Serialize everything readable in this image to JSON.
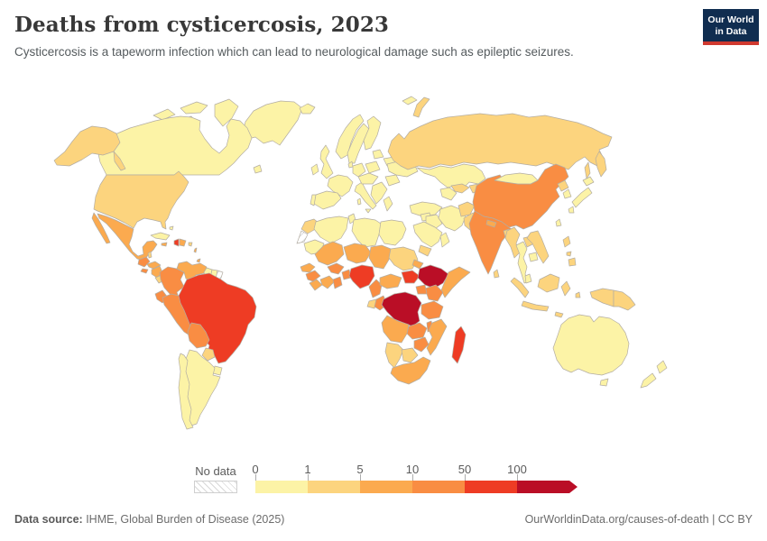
{
  "header": {
    "title": "Deaths from cysticercosis, 2023",
    "subtitle": "Cysticercosis is a tapeworm infection which can lead to neurological damage such as epileptic seizures."
  },
  "logo": {
    "line1": "Our World",
    "line2": "in Data",
    "bg": "#102d50",
    "accent": "#d0392f"
  },
  "legend": {
    "no_data_label": "No data"
  },
  "footer": {
    "source_label": "Data source:",
    "source_text": " IHME, Global Burden of Disease (2025)",
    "right_text": "OurWorldinData.org/causes-of-death | CC BY"
  },
  "map": {
    "border_color": "#b3ada3",
    "ocean_color": "#ffffff"
  },
  "chart_data": {
    "type": "heatmap",
    "subtype": "world-choropleth",
    "title": "Deaths from cysticercosis, 2023",
    "legend_position": "bottom",
    "bins": [
      {
        "label": "0",
        "range": "0-1",
        "color": "#fcf3a6"
      },
      {
        "label": "1",
        "range": "1-5",
        "color": "#fcd47e"
      },
      {
        "label": "5",
        "range": "5-10",
        "color": "#fbaa4f"
      },
      {
        "label": "10",
        "range": "10-50",
        "color": "#f98d43"
      },
      {
        "label": "50",
        "range": "50-100",
        "color": "#ee3c24"
      },
      {
        "label": "100",
        "range": "100+",
        "color": "#ba0e26"
      }
    ],
    "no_data_countries": [
      "western_sahara",
      "french_guiana"
    ],
    "countries": {
      "greenland": 0,
      "canada": 0,
      "usa": 1,
      "mexico": 2,
      "guatemala": 3,
      "belize": 1,
      "honduras": 2,
      "el_salvador": 3,
      "nicaragua": 2,
      "costa_rica": 1,
      "panama": 2,
      "cuba": 0,
      "jamaica": 2,
      "haiti": 4,
      "dominican_republic": 2,
      "puerto_rico": 1,
      "bahamas": 0,
      "lesser_antilles": 2,
      "trinidad_and_tobago": 2,
      "colombia": 3,
      "venezuela": 2,
      "guyana": 0,
      "suriname": 0,
      "french_guiana": -1,
      "ecuador": 3,
      "peru": 3,
      "brazil": 4,
      "bolivia": 3,
      "paraguay": 1,
      "uruguay": 0,
      "argentina": 0,
      "chile": 0,
      "iceland": 0,
      "ireland": 0,
      "united_kingdom": 0,
      "norway": 0,
      "sweden": 0,
      "finland": 0,
      "denmark": 0,
      "baltics": 0,
      "belarus": 0,
      "poland": 0,
      "germany": 0,
      "france": 0,
      "spain": 0,
      "portugal": 0,
      "italy": 0,
      "central_europe": 0,
      "balkans": 0,
      "greece": 0,
      "romania": 0,
      "ukraine": 0,
      "turkey": 0,
      "svalbard": 0,
      "russia": 1,
      "kazakhstan": 0,
      "turkmenistan": 0,
      "uzbekistan": 1,
      "kyrgyzstan": 1,
      "mongolia": 0,
      "china": 3,
      "north_korea": 1,
      "south_korea": 0,
      "japan": 0,
      "taiwan": 0,
      "afghanistan": 1,
      "pakistan": 1,
      "iran": 0,
      "iraq": 0,
      "syria": 0,
      "saudi_arabia": 0,
      "yemen": 1,
      "oman": 0,
      "india": 3,
      "nepal": 2,
      "bangladesh": 1,
      "sri_lanka": 1,
      "myanmar": 1,
      "thailand": 0,
      "laos": 1,
      "cambodia": 0,
      "vietnam": 1,
      "malaysia": 0,
      "indonesia": 1,
      "philippines": 1,
      "papua_new_guinea": 1,
      "morocco": 1,
      "western_sahara": -1,
      "algeria": 0,
      "tunisia": 0,
      "libya": 0,
      "egypt": 0,
      "mauritania": 0,
      "mali": 2,
      "niger": 2,
      "chad": 2,
      "sudan": 1,
      "eritrea": 2,
      "senegal": 2,
      "guinea": 3,
      "sierra_leone": 2,
      "cote_divoire": 2,
      "ghana": 3,
      "burkina_faso": 3,
      "togo_benin": 3,
      "nigeria": 4,
      "cameroon": 3,
      "central_african_republic": 2,
      "south_sudan": 4,
      "ethiopia": 5,
      "somalia": 2,
      "kenya": 3,
      "uganda": 3,
      "gabon": 1,
      "congo": 3,
      "democratic_republic_of_congo": 5,
      "tanzania": 3,
      "angola": 2,
      "zambia": 3,
      "malawi": 3,
      "mozambique": 2,
      "zimbabwe": 3,
      "namibia": 1,
      "botswana": 1,
      "south_africa": 2,
      "madagascar": 4,
      "australia": 0,
      "new_zealand": 0
    }
  }
}
